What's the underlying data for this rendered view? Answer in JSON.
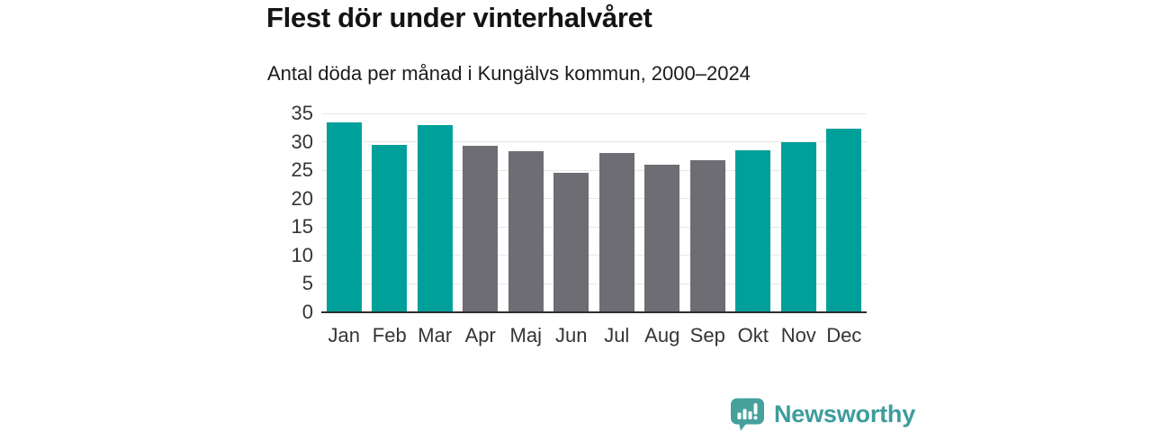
{
  "title": "Flest dör under vinterhalvåret",
  "subtitle": "Antal döda per månad i Kungälvs kommun, 2000–2024",
  "chart_data": {
    "type": "bar",
    "categories": [
      "Jan",
      "Feb",
      "Mar",
      "Apr",
      "Maj",
      "Jun",
      "Jul",
      "Aug",
      "Sep",
      "Okt",
      "Nov",
      "Dec"
    ],
    "values": [
      33.5,
      29.5,
      33.0,
      29.3,
      28.3,
      24.5,
      28.0,
      26.0,
      26.7,
      28.5,
      30.0,
      32.3
    ],
    "highlighted": [
      true,
      true,
      true,
      false,
      false,
      false,
      false,
      false,
      false,
      true,
      true,
      true
    ],
    "highlight_color": "#00a09a",
    "base_color": "#6e6d73",
    "xlabel": "",
    "ylabel": "",
    "ylim": [
      0,
      35
    ],
    "yticks": [
      0,
      5,
      10,
      15,
      20,
      25,
      30,
      35
    ],
    "grid": true,
    "legend": "none",
    "gridline_color": "#e7e7e7",
    "axis_line_color": "#2e2e2e",
    "tick_label_color": "#353535"
  },
  "branding": {
    "logo_text": "Newsworthy",
    "logo_color": "#3e9c9c",
    "logo_icon": "bar-chart-speech-bubble-icon",
    "logo_icon_color": "#46a09c"
  }
}
